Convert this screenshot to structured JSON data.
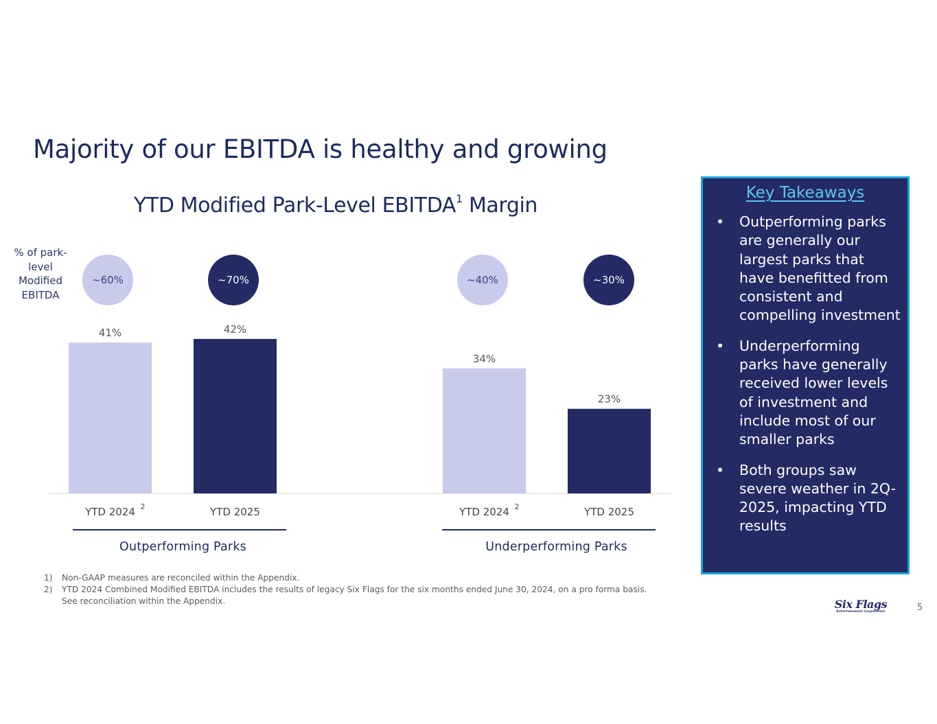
{
  "slide": {
    "title": "Majority of our EBITDA is healthy and growing",
    "page_number": "5",
    "logo_text": "Six Flags",
    "logo_subtext": "Entertainment Corporation"
  },
  "chart_data": {
    "type": "bar",
    "title": "YTD Modified Park-Level EBITDA",
    "title_superscript": "1",
    "title_suffix": "Margin",
    "ylabel": "% of park-level Modified EBITDA",
    "ylim": [
      0,
      50
    ],
    "grid": false,
    "categories": [
      "YTD 2024",
      "YTD 2025",
      "YTD 2024",
      "YTD 2025"
    ],
    "category_superscripts": [
      "2",
      "",
      "2",
      ""
    ],
    "values": [
      41,
      42,
      34,
      23
    ],
    "value_labels": [
      "41%",
      "42%",
      "34%",
      "23%"
    ],
    "shares": [
      "~60%",
      "~70%",
      "~40%",
      "~30%"
    ],
    "groups": [
      {
        "name": "Outperforming Parks",
        "bars": [
          0,
          1
        ]
      },
      {
        "name": "Underperforming Parks",
        "bars": [
          2,
          3
        ]
      }
    ],
    "colors": {
      "ytd_2024": "#c9cbec",
      "ytd_2025": "#242a64"
    }
  },
  "key_takeaways": {
    "title": "Key Takeaways",
    "bullet": "•",
    "items": [
      "Outperforming parks are generally our largest parks that have benefitted from consistent and compelling investment",
      "Underperforming parks have generally received lower levels of investment and include most of our smaller parks",
      "Both groups saw severe weather in 2Q-2025, impacting YTD results"
    ]
  },
  "footnotes": [
    {
      "number": "1)",
      "text": "Non-GAAP measures are reconciled within the Appendix."
    },
    {
      "number": "2)",
      "text": "YTD 2024 Combined Modified EBITDA includes the results of legacy Six Flags for the six months ended June 30, 2024, on a pro forma basis. See reconciliation within the Appendix."
    }
  ]
}
